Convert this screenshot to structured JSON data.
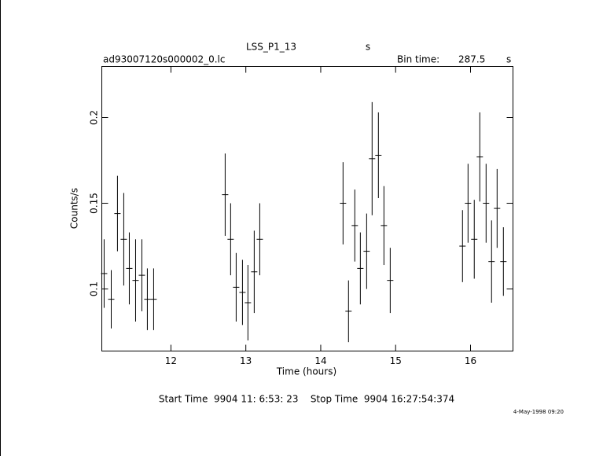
{
  "chart_data": {
    "type": "errorbar",
    "title": "LSS_P1_13",
    "title_unit": "s",
    "file_name": "ad93007120s000002_0.lc",
    "bin_time_label": "Bin time:",
    "bin_time": 287.5,
    "bin_time_unit": "s",
    "xlabel": "Time (hours)",
    "ylabel": "Counts/s",
    "footer": "Start Time  9904 11: 6:53: 23    Stop Time  9904 16:27:54:374",
    "stamp": "4-May-1998 09:20",
    "color": "#000000",
    "xlim": [
      11.077,
      16.567
    ],
    "xticks": [
      12,
      13,
      14,
      15,
      16
    ],
    "ylim": [
      0.0638,
      0.2298
    ],
    "yticks": [
      0.1,
      0.15,
      0.2
    ],
    "x": [
      11.108,
      11.203,
      11.286,
      11.37,
      11.444,
      11.528,
      11.612,
      11.685,
      11.769,
      12.724,
      12.797,
      12.871,
      12.955,
      13.028,
      13.112,
      13.186,
      14.298,
      14.371,
      14.455,
      14.529,
      14.613,
      14.686,
      14.77,
      14.844,
      14.928,
      15.893,
      15.967,
      16.05,
      16.124,
      16.208,
      16.281,
      16.355,
      16.439
    ],
    "values": [
      0.109,
      0.094,
      0.144,
      0.129,
      0.112,
      0.105,
      0.108,
      0.094,
      0.094,
      0.155,
      0.129,
      0.101,
      0.098,
      0.092,
      0.11,
      0.129,
      0.15,
      0.087,
      0.137,
      0.112,
      0.122,
      0.176,
      0.178,
      0.137,
      0.105,
      0.125,
      0.15,
      0.129,
      0.177,
      0.15,
      0.116,
      0.147,
      0.116
    ],
    "errors": [
      0.02,
      0.017,
      0.022,
      0.027,
      0.021,
      0.024,
      0.021,
      0.018,
      0.018,
      0.024,
      0.021,
      0.02,
      0.019,
      0.022,
      0.024,
      0.021,
      0.024,
      0.018,
      0.021,
      0.021,
      0.022,
      0.033,
      0.025,
      0.023,
      0.019,
      0.021,
      0.023,
      0.023,
      0.026,
      0.023,
      0.024,
      0.023,
      0.02
    ]
  }
}
